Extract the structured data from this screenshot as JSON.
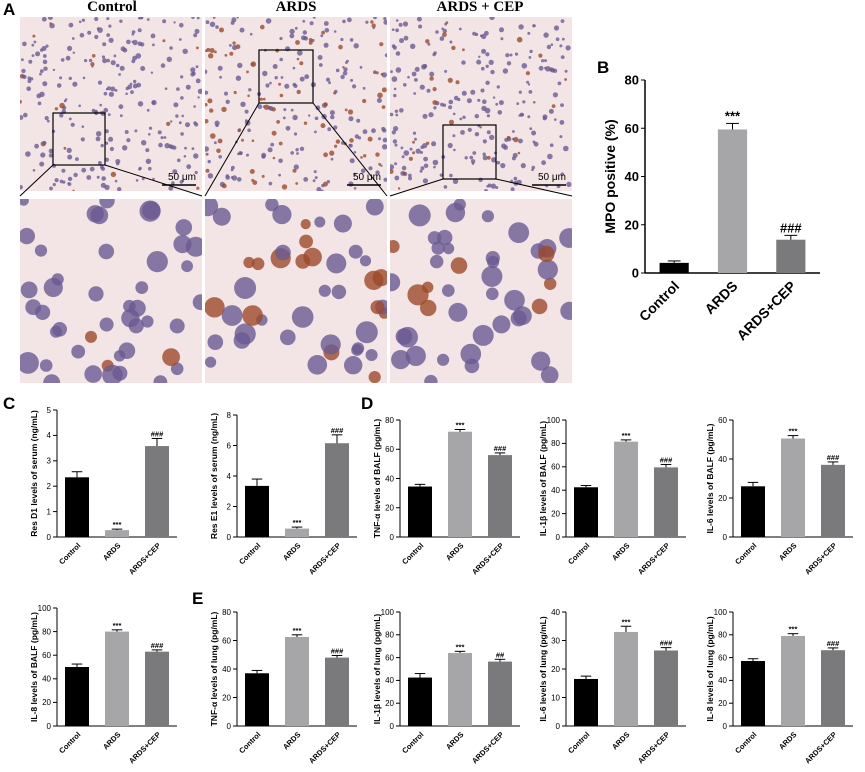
{
  "panels": {
    "A": "A",
    "B": "B",
    "C": "C",
    "D": "D",
    "E": "E"
  },
  "micrographs": {
    "titles": [
      "Control",
      "ARDS",
      "ARDS + CEP"
    ],
    "scale_bar": "50 μm"
  },
  "colors": {
    "control": "#000000",
    "ards": "#a6a6a8",
    "ards_cep": "#7a7a7c",
    "tissue_bg": "#f3e4e6",
    "nuclei": "#6a5a92",
    "brown": "#9c4a2a"
  },
  "chart_data": [
    {
      "id": "B-mpo",
      "type": "bar",
      "categories": [
        "Control",
        "ARDS",
        "ARDS+CEP"
      ],
      "values": [
        4.2,
        59.5,
        13.8
      ],
      "errors": [
        0.8,
        2.5,
        1.8
      ],
      "sig": [
        "",
        "***",
        "###"
      ],
      "ylabel": "MPO positive (%)",
      "ylim": [
        0,
        80
      ],
      "yticks": [
        0,
        20,
        40,
        60,
        80
      ]
    },
    {
      "id": "C-resd1",
      "type": "bar",
      "categories": [
        "Control",
        "ARDS",
        "ARDS+CEP"
      ],
      "values": [
        2.35,
        0.27,
        3.58
      ],
      "errors": [
        0.22,
        0.04,
        0.3
      ],
      "sig": [
        "",
        "***",
        "###"
      ],
      "ylabel": "Res D1 levels of serum (ng/mL)",
      "ylim": [
        0,
        5
      ],
      "yticks": [
        0,
        1,
        2,
        3,
        4,
        5
      ]
    },
    {
      "id": "C-rese1",
      "type": "bar",
      "categories": [
        "Control",
        "ARDS",
        "ARDS+CEP"
      ],
      "values": [
        3.35,
        0.55,
        6.15
      ],
      "errors": [
        0.45,
        0.1,
        0.55
      ],
      "sig": [
        "",
        "***",
        "###"
      ],
      "ylabel": "Res E1 levels of serum (ng/mL)",
      "ylim": [
        0,
        8
      ],
      "yticks": [
        0,
        2,
        4,
        6,
        8
      ]
    },
    {
      "id": "D-tnfa",
      "type": "bar",
      "categories": [
        "Control",
        "ARDS",
        "ARDS+CEP"
      ],
      "values": [
        34.5,
        72,
        56
      ],
      "errors": [
        1.5,
        1.5,
        1.5
      ],
      "sig": [
        "",
        "***",
        "###"
      ],
      "ylabel": "TNF-α levels of BALF (pg/mL)",
      "ylim": [
        0,
        80
      ],
      "yticks": [
        0,
        20,
        40,
        60,
        80
      ]
    },
    {
      "id": "D-il1b",
      "type": "bar",
      "categories": [
        "Control",
        "ARDS",
        "ARDS+CEP"
      ],
      "values": [
        42.5,
        81.5,
        59.5
      ],
      "errors": [
        1.5,
        1.5,
        2.5
      ],
      "sig": [
        "",
        "***",
        "###"
      ],
      "ylabel": "IL-1β levels of BALF (pg/mL)",
      "ylim": [
        0,
        100
      ],
      "yticks": [
        0,
        20,
        40,
        60,
        80,
        100
      ]
    },
    {
      "id": "D-il6",
      "type": "bar",
      "categories": [
        "Control",
        "ARDS",
        "ARDS+CEP"
      ],
      "values": [
        26,
        50.5,
        37
      ],
      "errors": [
        2,
        1.5,
        1.5
      ],
      "sig": [
        "",
        "***",
        "###"
      ],
      "ylabel": "IL-6 levels of BALF (pg/mL)",
      "ylim": [
        0,
        60
      ],
      "yticks": [
        0,
        20,
        40,
        60
      ]
    },
    {
      "id": "D-il8",
      "type": "bar",
      "categories": [
        "Control",
        "ARDS",
        "ARDS+CEP"
      ],
      "values": [
        50,
        80,
        63
      ],
      "errors": [
        2.5,
        1.5,
        1.5
      ],
      "sig": [
        "",
        "***",
        "###"
      ],
      "ylabel": "IL-8 levels of BALF (pg/mL)",
      "ylim": [
        0,
        100
      ],
      "yticks": [
        0,
        20,
        40,
        60,
        80,
        100
      ]
    },
    {
      "id": "E-tnfa",
      "type": "bar",
      "categories": [
        "Control",
        "ARDS",
        "ARDS+CEP"
      ],
      "values": [
        37,
        62.5,
        48
      ],
      "errors": [
        2,
        1.5,
        1.5
      ],
      "sig": [
        "",
        "***",
        "###"
      ],
      "ylabel": "TNF-α levels of lung (pg/mL)",
      "ylim": [
        0,
        80
      ],
      "yticks": [
        0,
        20,
        40,
        60,
        80
      ]
    },
    {
      "id": "E-il1b",
      "type": "bar",
      "categories": [
        "Control",
        "ARDS",
        "ARDS+CEP"
      ],
      "values": [
        42.5,
        64,
        56.5
      ],
      "errors": [
        3.5,
        1.5,
        2
      ],
      "sig": [
        "",
        "***",
        "##"
      ],
      "ylabel": "IL-1β levels of lung (pg/mL)",
      "ylim": [
        0,
        100
      ],
      "yticks": [
        0,
        20,
        40,
        60,
        80,
        100
      ]
    },
    {
      "id": "E-il6",
      "type": "bar",
      "categories": [
        "Control",
        "ARDS",
        "ARDS+CEP"
      ],
      "values": [
        16.5,
        33,
        26.5
      ],
      "errors": [
        1,
        2,
        1
      ],
      "sig": [
        "",
        "***",
        "###"
      ],
      "ylabel": "IL-6 levels of lung (pg/mL)",
      "ylim": [
        0,
        40
      ],
      "yticks": [
        0,
        10,
        20,
        30,
        40
      ]
    },
    {
      "id": "E-il8",
      "type": "bar",
      "categories": [
        "Control",
        "ARDS",
        "ARDS+CEP"
      ],
      "values": [
        57,
        79,
        66.5
      ],
      "errors": [
        2,
        2,
        2
      ],
      "sig": [
        "",
        "***",
        "###"
      ],
      "ylabel": "IL-8 levels of lung (pg/mL)",
      "ylim": [
        0,
        100
      ],
      "yticks": [
        0,
        20,
        40,
        60,
        80,
        100
      ]
    }
  ]
}
